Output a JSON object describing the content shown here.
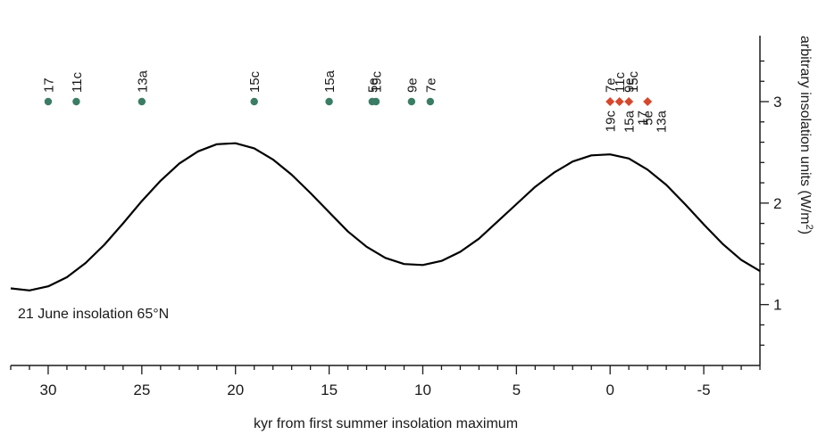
{
  "chart_data": {
    "type": "line",
    "xlabel": "kyr from first summer insolation maximum",
    "ylabel": "arbitrary insolation units (W/m",
    "ylabel_sup": "2",
    "ylabel_close": ")",
    "annotation": "21 June insolation 65°N",
    "xlim": [
      32,
      -8
    ],
    "ylim": [
      0.4,
      3.65
    ],
    "x_ticks": [
      30,
      25,
      20,
      15,
      10,
      5,
      0,
      -5
    ],
    "x_tick_labels": [
      "30",
      "25",
      "20",
      "15",
      "10",
      "5",
      "0",
      "-5"
    ],
    "y_ticks": [
      1,
      2,
      3
    ],
    "y_tick_labels": [
      "1",
      "2",
      "3"
    ],
    "series": [
      {
        "color": "#000000",
        "x": [
          32,
          31,
          30,
          29,
          28,
          27,
          26,
          25,
          24,
          23,
          22,
          21,
          20,
          19,
          18,
          17,
          16,
          15,
          14,
          13,
          12,
          11,
          10,
          9,
          8,
          7,
          6,
          5,
          4,
          3,
          2,
          1,
          0,
          -1,
          -2,
          -3,
          -4,
          -5,
          -6,
          -7,
          -8
        ],
        "y": [
          1.16,
          1.14,
          1.18,
          1.27,
          1.41,
          1.59,
          1.8,
          2.02,
          2.22,
          2.39,
          2.51,
          2.58,
          2.59,
          2.54,
          2.43,
          2.28,
          2.1,
          1.91,
          1.72,
          1.57,
          1.46,
          1.4,
          1.39,
          1.43,
          1.52,
          1.65,
          1.82,
          1.99,
          2.16,
          2.3,
          2.41,
          2.47,
          2.48,
          2.44,
          2.33,
          2.18,
          1.99,
          1.79,
          1.6,
          1.44,
          1.33
        ]
      }
    ],
    "points": [
      {
        "label": "17",
        "x": 30.0,
        "y": 3.0,
        "group": "green"
      },
      {
        "label": "11c",
        "x": 28.5,
        "y": 3.0,
        "group": "green"
      },
      {
        "label": "13a",
        "x": 25.0,
        "y": 3.0,
        "group": "green"
      },
      {
        "label": "15c",
        "x": 19.0,
        "y": 3.0,
        "group": "green"
      },
      {
        "label": "15a",
        "x": 15.0,
        "y": 3.0,
        "group": "green"
      },
      {
        "label": "5e",
        "x": 12.7,
        "y": 3.0,
        "group": "green"
      },
      {
        "label": "19c",
        "x": 12.5,
        "y": 3.0,
        "group": "green"
      },
      {
        "label": "9e",
        "x": 10.6,
        "y": 3.0,
        "group": "green"
      },
      {
        "label": "7e",
        "x": 9.6,
        "y": 3.0,
        "group": "green"
      },
      {
        "label": "7e",
        "x": 0.0,
        "y": 3.0,
        "group": "red",
        "side": "above"
      },
      {
        "label": "19c",
        "x": 0.0,
        "y": 3.0,
        "group": "red",
        "side": "below"
      },
      {
        "label": "11c",
        "x": -0.5,
        "y": 3.0,
        "group": "red",
        "side": "above"
      },
      {
        "label": "15c",
        "x": -0.5,
        "y": 3.0,
        "group": "red",
        "side": "above"
      },
      {
        "label": "15a",
        "x": -1.0,
        "y": 3.0,
        "group": "red",
        "side": "below"
      },
      {
        "label": "9e",
        "x": -1.0,
        "y": 3.0,
        "group": "red",
        "side": "above"
      },
      {
        "label": "17",
        "x": -1.0,
        "y": 3.0,
        "group": "red",
        "side": "below"
      },
      {
        "label": "5e",
        "x": -2.0,
        "y": 3.0,
        "group": "red",
        "side": "below"
      },
      {
        "label": "13a",
        "x": -2.0,
        "y": 3.0,
        "group": "red",
        "side": "below"
      }
    ],
    "colors": {
      "green": "#3a7d64",
      "red": "#d8472b",
      "line": "#000000",
      "axis": "#1a1a1a"
    },
    "grid": false,
    "legend": "none"
  }
}
